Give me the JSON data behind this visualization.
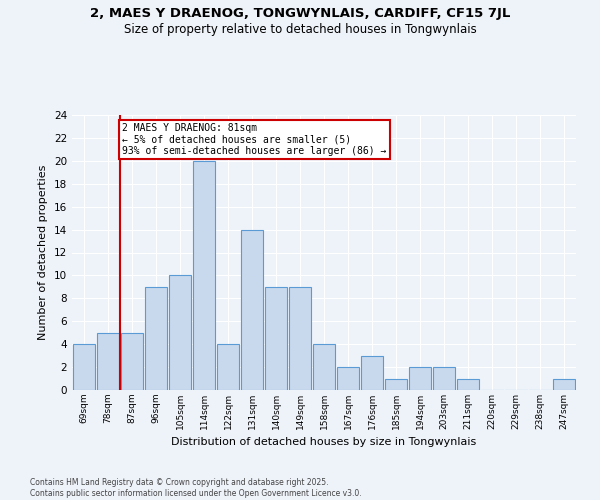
{
  "title_line1": "2, MAES Y DRAENOG, TONGWYNLAIS, CARDIFF, CF15 7JL",
  "title_line2": "Size of property relative to detached houses in Tongwynlais",
  "xlabel": "Distribution of detached houses by size in Tongwynlais",
  "ylabel": "Number of detached properties",
  "categories": [
    "69sqm",
    "78sqm",
    "87sqm",
    "96sqm",
    "105sqm",
    "114sqm",
    "122sqm",
    "131sqm",
    "140sqm",
    "149sqm",
    "158sqm",
    "167sqm",
    "176sqm",
    "185sqm",
    "194sqm",
    "203sqm",
    "211sqm",
    "220sqm",
    "229sqm",
    "238sqm",
    "247sqm"
  ],
  "values": [
    4,
    5,
    5,
    9,
    10,
    20,
    4,
    14,
    9,
    9,
    4,
    2,
    3,
    1,
    2,
    2,
    1,
    0,
    0,
    0,
    1
  ],
  "bar_color": "#c8d9ed",
  "bar_edge_color": "#5b9bd5",
  "annotation_text_line1": "2 MAES Y DRAENOG: 81sqm",
  "annotation_text_line2": "← 5% of detached houses are smaller (5)",
  "annotation_text_line3": "93% of semi-detached houses are larger (86) →",
  "annotation_box_color": "#ffffff",
  "annotation_box_edge_color": "#cc0000",
  "red_line_color": "#cc0000",
  "background_color": "#eef2f9",
  "grid_color": "#ffffff",
  "ylim": [
    0,
    24
  ],
  "yticks": [
    0,
    2,
    4,
    6,
    8,
    10,
    12,
    14,
    16,
    18,
    20,
    22,
    24
  ],
  "footnote_line1": "Contains HM Land Registry data © Crown copyright and database right 2025.",
  "footnote_line2": "Contains public sector information licensed under the Open Government Licence v3.0."
}
